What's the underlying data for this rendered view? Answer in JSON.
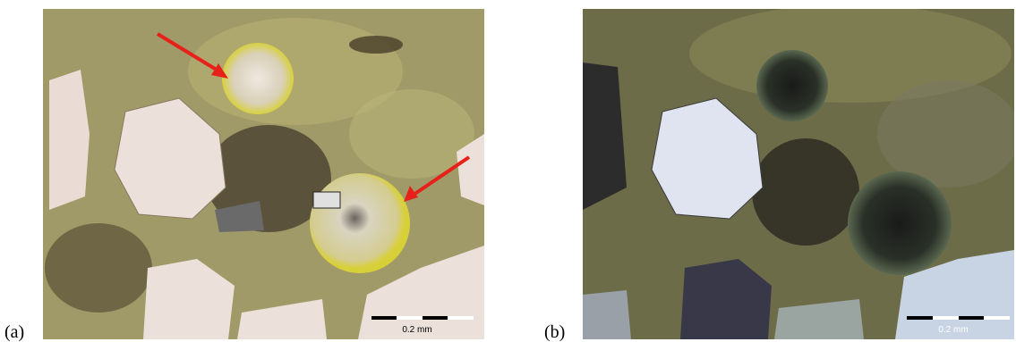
{
  "panels": [
    {
      "label": "(a)",
      "scale_bar": "0.2 mm"
    },
    {
      "label": "(b)",
      "scale_bar": "0.2 mm"
    }
  ]
}
